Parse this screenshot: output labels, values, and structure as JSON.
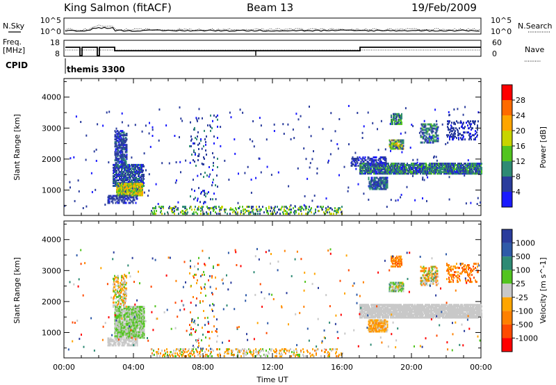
{
  "header": {
    "station": "King Salmon (fitACF)",
    "beam": "Beam 13",
    "date": "19/Feb/2009"
  },
  "top_panels": {
    "nsky_label": "N.Sky",
    "nsearch_label": "N.Search",
    "counts_ticks": [
      "10^5",
      "10^0"
    ],
    "freq_label_1": "Freq.",
    "freq_label_2": "[MHz]",
    "freq_ticks": [
      "18",
      "8"
    ],
    "nave_label": "Nave",
    "nave_ticks": [
      "60",
      "0"
    ],
    "cpid_label": "CPID",
    "cpid_value": "themis 3300"
  },
  "colors": {
    "power": [
      "#1a1aff",
      "#2a3c9c",
      "#2e8a74",
      "#52c41f",
      "#c8d400",
      "#ffa500",
      "#ff6a00",
      "#ff0000"
    ],
    "velocity": [
      "#2a3c9c",
      "#2e5aa8",
      "#2e8a74",
      "#52c41f",
      "#c8c8c8",
      "#ffa500",
      "#ff8000",
      "#ff4a00",
      "#ff0000"
    ]
  },
  "chart_data": [
    {
      "type": "heatmap",
      "name": "power",
      "xlabel": "",
      "ylabel": "Slant Range [km]",
      "xlim_hours": [
        0,
        24
      ],
      "ylim": [
        180,
        4600
      ],
      "x_tick_labels": [
        "00:00",
        "04:00",
        "08:00",
        "12:00",
        "16:00",
        "20:00",
        "00:00"
      ],
      "x_tick_hours": [
        0,
        4,
        8,
        12,
        16,
        20,
        24
      ],
      "y_ticks": [
        1000,
        2000,
        3000,
        4000
      ],
      "colorbar": {
        "label": "Power [dB]",
        "ticks": [
          4,
          8,
          12,
          16,
          20,
          24,
          28
        ],
        "range": [
          0,
          32
        ]
      },
      "regions": [
        {
          "t0": 2.9,
          "t1": 3.6,
          "r0": 1700,
          "r1": 2900,
          "v0": 3,
          "v1": 9,
          "density": 0.5
        },
        {
          "t0": 2.8,
          "t1": 4.6,
          "r0": 1100,
          "r1": 1800,
          "v0": 3,
          "v1": 10,
          "density": 0.55
        },
        {
          "t0": 3.0,
          "t1": 4.5,
          "r0": 800,
          "r1": 1200,
          "v0": 9,
          "v1": 24,
          "density": 0.85
        },
        {
          "t0": 2.5,
          "t1": 4.2,
          "r0": 550,
          "r1": 800,
          "v0": 3,
          "v1": 8,
          "density": 0.4
        },
        {
          "t0": 5.0,
          "t1": 16.0,
          "r0": 200,
          "r1": 450,
          "v0": 4,
          "v1": 20,
          "density": 0.18
        },
        {
          "t0": 17.0,
          "t1": 24.0,
          "r0": 1500,
          "r1": 1850,
          "v0": 3,
          "v1": 14,
          "density": 0.7
        },
        {
          "t0": 16.5,
          "t1": 18.5,
          "r0": 1750,
          "r1": 2050,
          "v0": 3,
          "v1": 6,
          "density": 0.35
        },
        {
          "t0": 17.5,
          "t1": 18.6,
          "r0": 1000,
          "r1": 1400,
          "v0": 3,
          "v1": 12,
          "density": 0.6
        },
        {
          "t0": 18.7,
          "t1": 19.5,
          "r0": 2300,
          "r1": 2600,
          "v0": 5,
          "v1": 22,
          "density": 0.6
        },
        {
          "t0": 18.8,
          "t1": 19.4,
          "r0": 3100,
          "r1": 3450,
          "v0": 5,
          "v1": 16,
          "density": 0.5
        },
        {
          "t0": 20.5,
          "t1": 21.5,
          "r0": 2500,
          "r1": 3100,
          "v0": 3,
          "v1": 14,
          "density": 0.35
        },
        {
          "t0": 22.0,
          "t1": 23.8,
          "r0": 2600,
          "r1": 3200,
          "v0": 3,
          "v1": 8,
          "density": 0.2
        },
        {
          "t0": 7.2,
          "t1": 8.8,
          "r0": 400,
          "r1": 3400,
          "v0": 3,
          "v1": 10,
          "density": 0.03
        }
      ]
    },
    {
      "type": "heatmap",
      "name": "velocity",
      "xlabel": "Time UT",
      "ylabel": "Slant Range [km]",
      "xlim_hours": [
        0,
        24
      ],
      "ylim": [
        180,
        4600
      ],
      "x_tick_labels": [
        "00:00",
        "04:00",
        "08:00",
        "12:00",
        "16:00",
        "20:00",
        "00:00"
      ],
      "x_tick_hours": [
        0,
        4,
        8,
        12,
        16,
        20,
        24
      ],
      "y_ticks": [
        1000,
        2000,
        3000,
        4000
      ],
      "colorbar": {
        "label": "Velocity [m s^-1]",
        "ticks": [
          "1000",
          "500",
          "100",
          "25",
          "-25",
          "-100",
          "-500",
          "-1000"
        ],
        "bands": 9
      },
      "regions": [
        {
          "t0": 2.9,
          "t1": 4.6,
          "r0": 800,
          "r1": 1800,
          "v0": 3,
          "v1": 4,
          "density": 0.7
        },
        {
          "t0": 2.8,
          "t1": 3.6,
          "r0": 1800,
          "r1": 2800,
          "v0": 3,
          "v1": 6,
          "density": 0.35
        },
        {
          "t0": 2.5,
          "t1": 4.2,
          "r0": 550,
          "r1": 800,
          "v0": 4,
          "v1": 4,
          "density": 0.4
        },
        {
          "t0": 5.0,
          "t1": 16.0,
          "r0": 200,
          "r1": 450,
          "v0": 3,
          "v1": 6,
          "density": 0.18
        },
        {
          "t0": 17.0,
          "t1": 24.0,
          "r0": 1450,
          "r1": 1900,
          "v0": 4,
          "v1": 4,
          "density": 0.75
        },
        {
          "t0": 17.5,
          "t1": 18.6,
          "r0": 1000,
          "r1": 1400,
          "v0": 4,
          "v1": 6,
          "density": 0.6
        },
        {
          "t0": 18.7,
          "t1": 19.5,
          "r0": 2300,
          "r1": 2600,
          "v0": 2,
          "v1": 5,
          "density": 0.6
        },
        {
          "t0": 18.8,
          "t1": 19.4,
          "r0": 3100,
          "r1": 3450,
          "v0": 5,
          "v1": 7,
          "density": 0.5
        },
        {
          "t0": 20.5,
          "t1": 21.5,
          "r0": 2500,
          "r1": 3100,
          "v0": 2,
          "v1": 7,
          "density": 0.35
        },
        {
          "t0": 22.0,
          "t1": 23.8,
          "r0": 2600,
          "r1": 3200,
          "v0": 5,
          "v1": 7,
          "density": 0.2
        },
        {
          "t0": 7.2,
          "t1": 8.8,
          "r0": 400,
          "r1": 3400,
          "v0": 0,
          "v1": 8,
          "density": 0.03
        }
      ]
    }
  ]
}
